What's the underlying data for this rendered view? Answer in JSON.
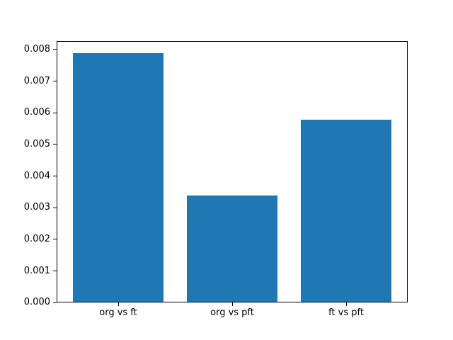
{
  "chart_data": {
    "type": "bar",
    "title": "",
    "xlabel": "",
    "ylabel": "",
    "categories": [
      "org vs ft",
      "org vs pft",
      "ft vs pft"
    ],
    "values": [
      0.00788,
      0.00339,
      0.00578
    ],
    "ylim": [
      0,
      0.008274
    ],
    "ytick_values": [
      0,
      0.001,
      0.002,
      0.003,
      0.004,
      0.005,
      0.006,
      0.007,
      0.008
    ],
    "ytick_labels": [
      "0.000",
      "0.001",
      "0.002",
      "0.003",
      "0.004",
      "0.005",
      "0.006",
      "0.007",
      "0.008"
    ],
    "bar_width_fraction": 0.8,
    "x_margin_fraction": 0.05,
    "grid": false,
    "legend_position": "none",
    "bar_color": "#1f77b4",
    "axis_color": "#000000",
    "background_color": "#ffffff"
  }
}
